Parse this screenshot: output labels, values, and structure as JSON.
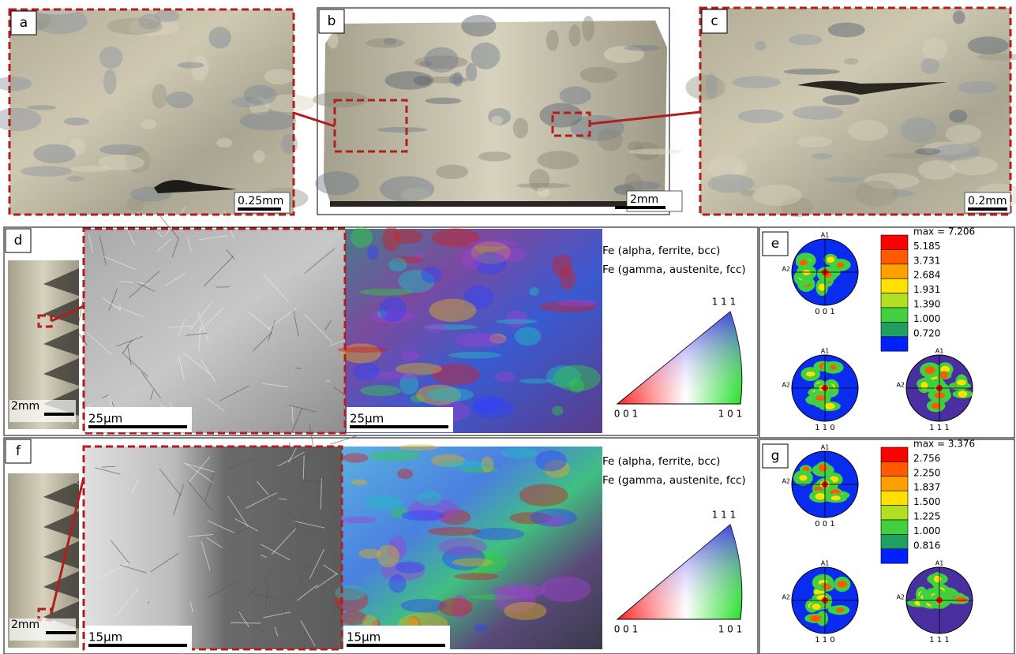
{
  "panels": {
    "a": {
      "label": "a",
      "scale_bar": "0.25mm"
    },
    "b": {
      "label": "b",
      "scale_bar": "2mm"
    },
    "c": {
      "label": "c",
      "scale_bar": "0.2mm"
    },
    "d": {
      "label": "d",
      "inset_scale_bar": "2mm",
      "micrograph_scale_bar": "25µm",
      "ebsd_scale_bar": "25µm",
      "phases": [
        "Fe (alpha, ferrite, bcc)",
        "Fe (gamma, austenite, fcc)"
      ],
      "ipf": {
        "top": "1 1 1",
        "left": "0 0 1",
        "right": "1 0 1"
      }
    },
    "e": {
      "label": "e",
      "legend": [
        "max = 7.206",
        "5.185",
        "3.731",
        "2.684",
        "1.931",
        "1.390",
        "1.000",
        "0.720"
      ],
      "pole_figures": [
        {
          "title": "0 0 1",
          "axis_top": "A1",
          "axis_left": "A2"
        },
        {
          "title": "1 1 0",
          "axis_top": "A1",
          "axis_left": "A2"
        },
        {
          "title": "1 1 1",
          "axis_top": "A1",
          "axis_left": "A2"
        }
      ]
    },
    "f": {
      "label": "f",
      "inset_scale_bar": "2mm",
      "micrograph_scale_bar": "15µm",
      "ebsd_scale_bar": "15µm",
      "phases": [
        "Fe (alpha, ferrite, bcc)",
        "Fe (gamma, austenite, fcc)"
      ],
      "ipf": {
        "top": "1 1 1",
        "left": "0 0 1",
        "right": "1 0 1"
      }
    },
    "g": {
      "label": "g",
      "legend": [
        "max = 3.376",
        "2.756",
        "2.250",
        "1.837",
        "1.500",
        "1.225",
        "1.000",
        "0.816"
      ],
      "pole_figures": [
        {
          "title": "0 0 1",
          "axis_top": "A1",
          "axis_left": "A2"
        },
        {
          "title": "1 1 0",
          "axis_top": "A1",
          "axis_left": "A2"
        },
        {
          "title": "1 1 1",
          "axis_top": "A1",
          "axis_left": "A2"
        }
      ]
    }
  }
}
